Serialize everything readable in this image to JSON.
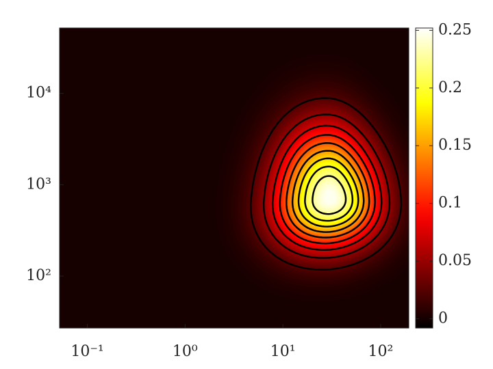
{
  "chart_data": {
    "type": "contourf",
    "xlim": [
      0.052,
      194
    ],
    "xscale": "log",
    "xticks": [
      {
        "value": 0.1,
        "label": "10⁻¹"
      },
      {
        "value": 1,
        "label": "10⁰"
      },
      {
        "value": 10,
        "label": "10¹"
      },
      {
        "value": 100,
        "label": "10²"
      }
    ],
    "ylim": [
      27,
      52000
    ],
    "yscale": "log",
    "yticks": [
      {
        "value": 100,
        "label": "10²"
      },
      {
        "value": 1000,
        "label": "10³"
      },
      {
        "value": 10000,
        "label": "10⁴"
      }
    ],
    "colormap": "hot",
    "clim": [
      -0.008,
      0.252
    ],
    "cticks": [
      0,
      0.05,
      0.1,
      0.15,
      0.2,
      0.25
    ],
    "contour_levels": [
      0.025,
      0.05,
      0.075,
      0.1,
      0.125,
      0.15,
      0.175,
      0.2,
      0.225
    ],
    "contour_color": "#000000"
  }
}
